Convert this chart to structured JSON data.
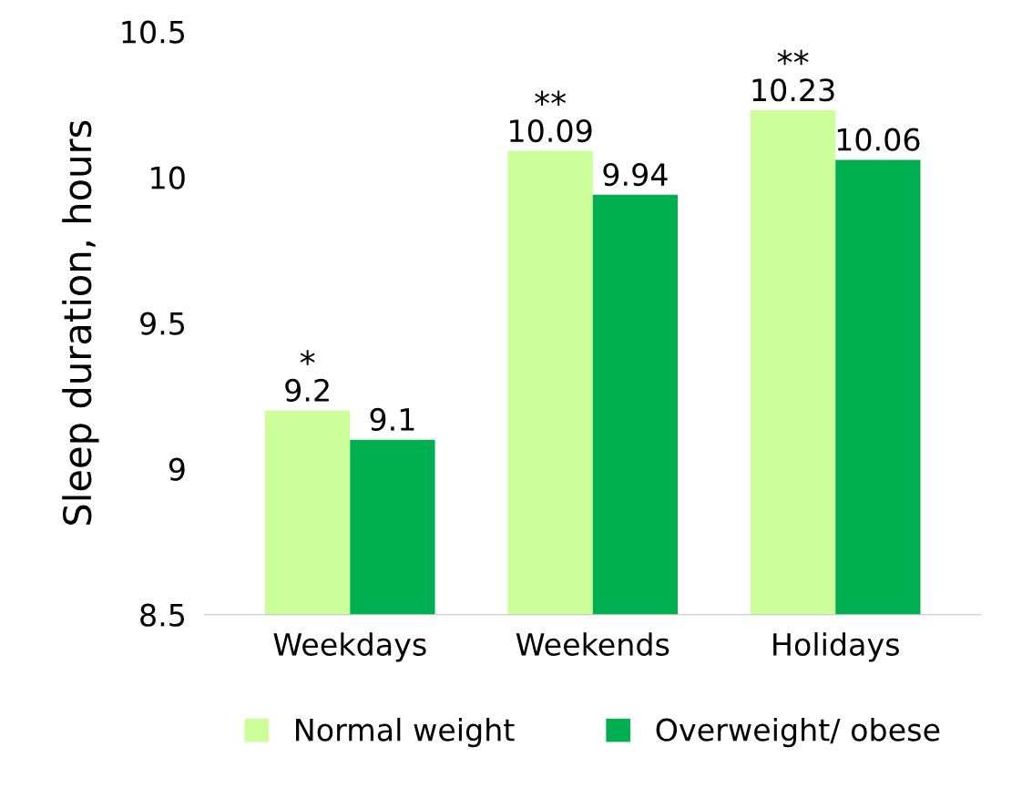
{
  "chart_data": {
    "type": "bar",
    "ylabel": "Sleep duration, hours",
    "categories": [
      "Weekdays",
      "Weekends",
      "Holidays"
    ],
    "series": [
      {
        "name": "Normal weight",
        "color": "#ccff99",
        "values": [
          9.2,
          10.09,
          10.23
        ]
      },
      {
        "name": "Overweight/ obese",
        "color": "#00b050",
        "values": [
          9.1,
          9.94,
          10.06
        ]
      }
    ],
    "ylim": [
      8.5,
      10.5
    ],
    "yticks": [
      8.5,
      9,
      9.5,
      10,
      10.5
    ],
    "data_labels": true,
    "grid": false,
    "legend": "bottom",
    "annotations": [
      "*",
      "**",
      "**"
    ]
  }
}
